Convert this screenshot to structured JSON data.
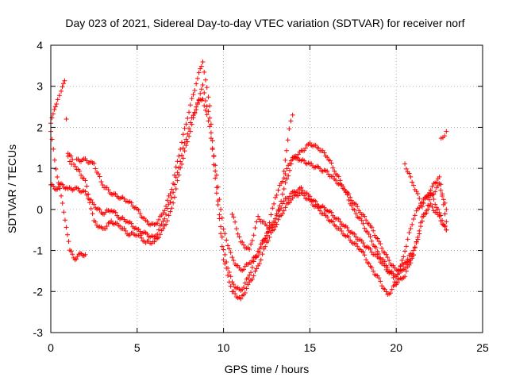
{
  "chart_data": {
    "type": "scatter",
    "title": "Day 023 of 2021, Sidereal Day-to-day VTEC variation (SDTVAR) for receiver norf",
    "xlabel": "GPS time / hours",
    "ylabel": "SDTVAR / TECUs",
    "xlim": [
      0,
      25
    ],
    "ylim": [
      -3,
      4
    ],
    "xticks": [
      0,
      5,
      10,
      15,
      20,
      25
    ],
    "yticks": [
      -3,
      -2,
      -1,
      0,
      1,
      2,
      3,
      4
    ],
    "xtick_labels": [
      "0",
      "5",
      "10",
      "15",
      "20",
      "25"
    ],
    "ytick_labels": [
      "-3",
      "-2",
      "-1",
      "0",
      "1",
      "2",
      "3",
      "4"
    ],
    "grid": true,
    "marker": "+",
    "color": "#ff0000",
    "series": [
      {
        "name": "s1",
        "x": [
          0.0,
          0.3,
          0.6,
          1.0,
          1.5,
          2.0,
          2.5,
          3.0,
          3.5,
          4.0,
          4.5,
          5.0,
          5.5,
          6.0,
          6.5,
          7.0,
          7.5,
          8.0,
          8.5,
          8.8,
          9.2,
          9.6,
          10.0,
          10.5,
          11.0,
          11.5,
          12.0,
          12.5,
          13.0,
          13.5,
          14.0,
          14.5,
          15.0,
          15.5,
          16.0,
          16.5,
          17.0,
          17.5,
          18.0,
          18.5,
          19.0,
          19.5,
          20.0,
          20.5,
          21.0,
          21.5,
          22.0,
          22.5,
          22.9
        ],
        "y": [
          0.6,
          0.5,
          0.6,
          0.5,
          0.5,
          0.4,
          0.1,
          -0.1,
          0.0,
          -0.2,
          -0.3,
          -0.5,
          -0.6,
          -0.7,
          -0.3,
          0.3,
          1.2,
          2.0,
          2.6,
          2.7,
          2.0,
          0.8,
          -0.5,
          -1.2,
          -1.5,
          -1.3,
          -1.1,
          -0.6,
          -0.2,
          0.2,
          0.4,
          0.5,
          0.3,
          0.1,
          0.0,
          -0.2,
          -0.4,
          -0.6,
          -0.8,
          -1.0,
          -1.2,
          -1.5,
          -1.6,
          -1.4,
          -1.1,
          -0.2,
          0.1,
          -0.2,
          -0.5
        ]
      },
      {
        "name": "s2",
        "x": [
          0.0,
          0.2,
          0.4,
          0.6,
          0.8,
          1.0,
          1.2
        ],
        "y": [
          2.1,
          2.4,
          2.7,
          2.9,
          3.1,
          1.3,
          1.1
        ]
      },
      {
        "name": "s3",
        "x": [
          0.0,
          0.3,
          0.6,
          0.9,
          1.1,
          1.4,
          1.7,
          2.0
        ],
        "y": [
          1.9,
          1.0,
          0.3,
          -0.4,
          -1.0,
          -1.2,
          -1.1,
          -1.1
        ]
      },
      {
        "name": "s4",
        "x": [
          1.5,
          2.0,
          2.5,
          3.0,
          3.5,
          4.0,
          4.5,
          5.0,
          5.5,
          6.0,
          6.5,
          7.0,
          7.5,
          8.0,
          8.5,
          8.8,
          9.2,
          9.6,
          10.0,
          10.5,
          11.0,
          11.5,
          12.0,
          12.5,
          13.0,
          13.5,
          14.0,
          14.5,
          15.0,
          15.5,
          16.0,
          16.5,
          17.0,
          17.5,
          18.0,
          18.5,
          19.0,
          19.5,
          20.0,
          20.5,
          21.0,
          21.5,
          22.0,
          22.5,
          22.9
        ],
        "y": [
          1.2,
          1.2,
          1.1,
          0.6,
          0.4,
          0.3,
          0.2,
          0.0,
          -0.3,
          -0.4,
          -0.1,
          0.5,
          1.5,
          2.4,
          3.2,
          3.6,
          2.5,
          0.5,
          -1.0,
          -1.8,
          -2.0,
          -1.6,
          -1.0,
          -0.6,
          -0.3,
          0.5,
          1.2,
          1.4,
          1.6,
          1.5,
          1.3,
          0.9,
          0.5,
          0.0,
          -0.3,
          -0.7,
          -1.1,
          -1.4,
          -1.8,
          -1.6,
          -1.1,
          -0.3,
          0.3,
          0.6,
          0.0
        ]
      },
      {
        "name": "s5",
        "x": [
          1.0,
          1.5,
          2.0,
          2.5,
          3.0,
          3.5,
          4.0,
          4.5,
          5.0,
          5.5,
          6.0,
          6.5,
          7.0,
          7.5,
          8.0,
          8.5,
          8.8,
          9.2,
          9.6,
          10.0,
          10.5,
          11.0,
          11.5,
          12.0,
          12.5,
          13.0,
          13.5,
          14.0,
          14.5,
          15.0,
          15.5,
          16.0,
          16.5,
          17.0,
          17.5,
          18.0,
          18.5,
          19.0,
          19.5,
          20.0,
          20.5,
          21.0,
          21.5,
          22.0,
          22.5,
          22.9
        ],
        "y": [
          1.4,
          1.0,
          0.7,
          -0.3,
          -0.5,
          -0.3,
          -0.4,
          -0.6,
          -0.6,
          -0.8,
          -0.8,
          -0.5,
          0.0,
          1.0,
          1.8,
          2.6,
          3.0,
          2.2,
          0.4,
          -1.2,
          -2.0,
          -2.2,
          -1.8,
          -1.4,
          -0.8,
          -0.4,
          0.0,
          0.3,
          0.4,
          0.2,
          0.0,
          -0.2,
          -0.4,
          -0.6,
          -0.8,
          -1.0,
          -1.4,
          -1.7,
          -2.1,
          -1.8,
          -1.0,
          -0.2,
          0.2,
          0.4,
          -0.1,
          -0.5
        ]
      },
      {
        "name": "s6",
        "x": [
          12.5,
          13.0,
          13.5,
          14.0,
          14.5,
          15.0,
          15.5,
          16.0,
          16.5,
          17.0,
          17.5,
          18.0,
          18.5,
          19.0,
          19.5,
          20.0,
          20.5,
          21.0
        ],
        "y": [
          -0.6,
          0.3,
          0.8,
          1.3,
          1.2,
          1.1,
          1.0,
          0.9,
          0.7,
          0.5,
          0.2,
          -0.1,
          -0.4,
          -0.8,
          -1.2,
          -1.5,
          -1.3,
          -1.0
        ]
      },
      {
        "name": "s7",
        "x": [
          13.5,
          13.8,
          14.0
        ],
        "y": [
          0.9,
          2.0,
          2.3
        ]
      },
      {
        "name": "s8",
        "x": [
          20.5,
          21.0,
          21.5,
          22.0,
          22.5,
          22.9
        ],
        "y": [
          1.1,
          0.6,
          0.1,
          0.5,
          0.8,
          -0.3
        ]
      },
      {
        "name": "s9",
        "x": [
          22.6,
          22.8,
          22.9
        ],
        "y": [
          1.7,
          1.8,
          1.9
        ]
      },
      {
        "name": "s10",
        "x": [
          10.5,
          11.0,
          11.5,
          12.0,
          12.5
        ],
        "y": [
          -0.1,
          -0.8,
          -1.0,
          -0.2,
          -0.4
        ]
      }
    ]
  }
}
